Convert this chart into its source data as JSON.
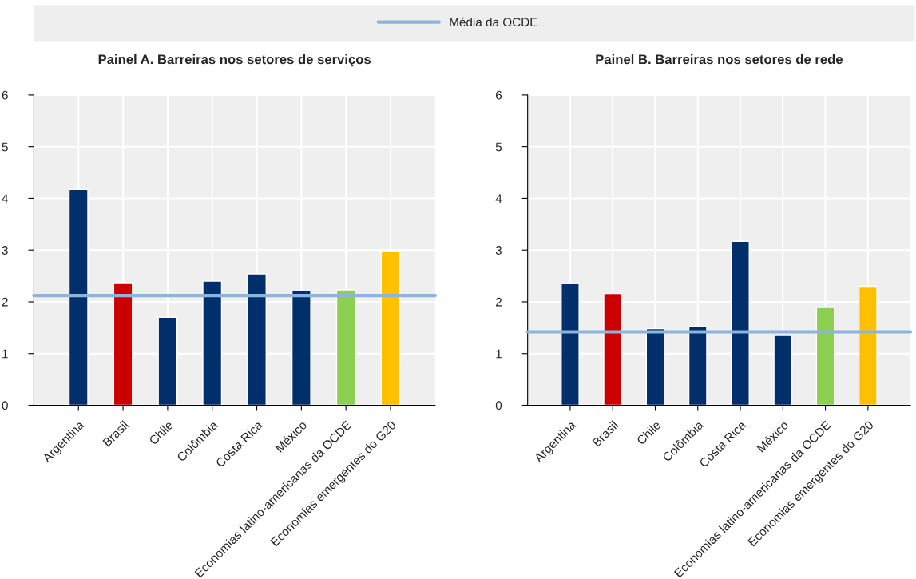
{
  "chart_data": [
    {
      "type": "bar",
      "title": "Painel A. Barreiras nos setores de serviços",
      "categories": [
        "Argentina",
        "Brasil",
        "Chile",
        "Colômbia",
        "Costa Rica",
        "México",
        "Economias latino-americanas da OCDE",
        "Economias emergentes do G20"
      ],
      "values": [
        4.17,
        2.37,
        1.7,
        2.4,
        2.54,
        2.21,
        2.23,
        2.98
      ],
      "colors": [
        "#002f6c",
        "#cc0000",
        "#002f6c",
        "#002f6c",
        "#002f6c",
        "#002f6c",
        "#8cd050",
        "#ffc000"
      ],
      "ylim": [
        0,
        6
      ],
      "yticks": [
        0,
        1,
        2,
        3,
        4,
        5,
        6
      ],
      "grid": true,
      "legend": "top",
      "ref_lines": [
        {
          "axis": "y",
          "value": 2.12,
          "label": "Média da OCDE",
          "color": "#8cb4dc"
        }
      ]
    },
    {
      "type": "bar",
      "title": "Painel B. Barreiras nos setores de rede",
      "categories": [
        "Argentina",
        "Brasil",
        "Chile",
        "Colômbia",
        "Costa Rica",
        "México",
        "Economias latino-americanas da OCDE",
        "Economias emergentes do G20"
      ],
      "values": [
        2.35,
        2.16,
        1.48,
        1.53,
        3.17,
        1.35,
        1.89,
        2.3
      ],
      "colors": [
        "#002f6c",
        "#cc0000",
        "#002f6c",
        "#002f6c",
        "#002f6c",
        "#002f6c",
        "#8cd050",
        "#ffc000"
      ],
      "ylim": [
        0,
        6
      ],
      "yticks": [
        0,
        1,
        2,
        3,
        4,
        5,
        6
      ],
      "grid": true,
      "ref_lines": [
        {
          "axis": "y",
          "value": 1.42,
          "color": "#8cb4dc"
        }
      ]
    }
  ]
}
